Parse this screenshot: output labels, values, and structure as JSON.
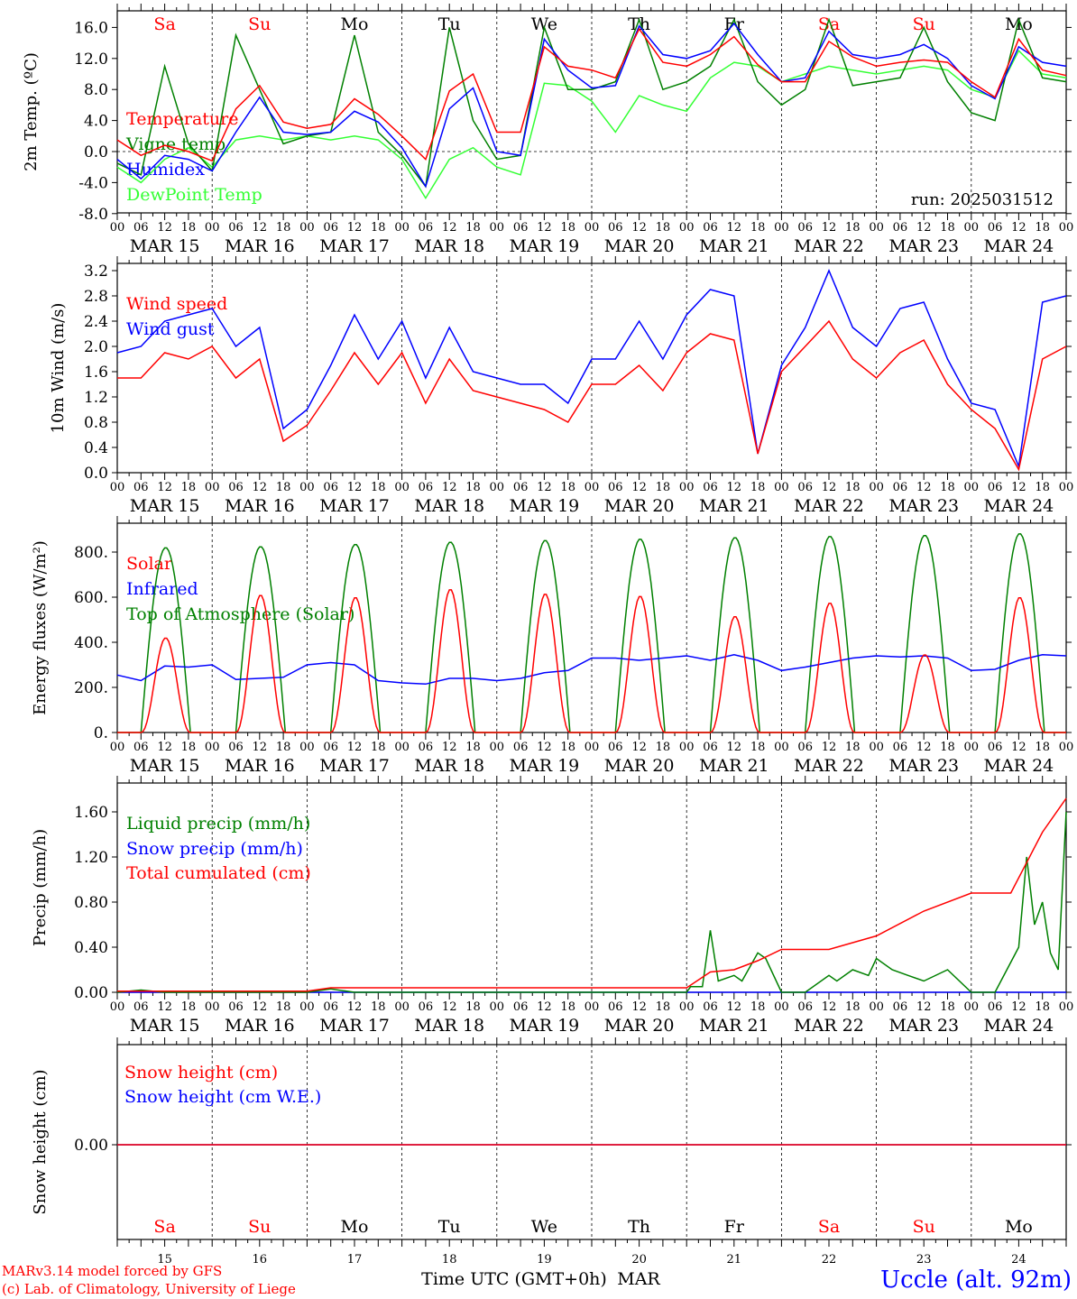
{
  "colors": {
    "temperature": "#ff0000",
    "vigne": "#008000",
    "humidex": "#0000ff",
    "dewpoint": "#33ff33",
    "wind_speed": "#ff0000",
    "wind_gust": "#0000ff",
    "solar": "#ff0000",
    "infrared": "#0000ff",
    "toa": "#008000",
    "liquid": "#008000",
    "snow": "#0000ff",
    "cumul": "#ff0000",
    "weekend": "#ff0000",
    "weekday": "#000000",
    "station": "#0000ff",
    "credit": "#ff0000"
  },
  "header": {
    "run": "run: 2025031512"
  },
  "footer": {
    "xlabel": "Time UTC (GMT+0h)",
    "month": "MAR",
    "credit_line1": "MARv3.14 model forced by GFS",
    "credit_line2": "(c) Lab. of Climatology, University of Liege",
    "station": "Uccle (alt. 92m)"
  },
  "days": [
    {
      "abbr": "Sa",
      "date": "MAR 15",
      "num": "15",
      "weekend": true
    },
    {
      "abbr": "Su",
      "date": "MAR 16",
      "num": "16",
      "weekend": true
    },
    {
      "abbr": "Mo",
      "date": "MAR 17",
      "num": "17",
      "weekend": false
    },
    {
      "abbr": "Tu",
      "date": "MAR 18",
      "num": "18",
      "weekend": false
    },
    {
      "abbr": "We",
      "date": "MAR 19",
      "num": "19",
      "weekend": false
    },
    {
      "abbr": "Th",
      "date": "MAR 20",
      "num": "20",
      "weekend": false
    },
    {
      "abbr": "Fr",
      "date": "MAR 21",
      "num": "21",
      "weekend": false
    },
    {
      "abbr": "Sa",
      "date": "MAR 22",
      "num": "22",
      "weekend": true
    },
    {
      "abbr": "Su",
      "date": "MAR 23",
      "num": "23",
      "weekend": true
    },
    {
      "abbr": "Mo",
      "date": "MAR 24",
      "num": "24",
      "weekend": false
    }
  ],
  "hour_ticks": [
    "00",
    "06",
    "12",
    "18"
  ],
  "chart_data": [
    {
      "type": "line",
      "ylabel": "2m Temp. (ºC)",
      "ylim": [
        -8,
        18
      ],
      "yticks": [
        "-8.0",
        "-4.0",
        "0.0",
        "4.0",
        "8.0",
        "12.0",
        "16.0"
      ],
      "ytick_values": [
        -8,
        -4,
        0,
        4,
        8,
        12,
        16
      ],
      "x_unit": "hours since MAR 15 00 UTC",
      "xlim": [
        0,
        240
      ],
      "series": [
        {
          "name": "Temperature",
          "color_key": "temperature",
          "x": [
            0,
            6,
            12,
            18,
            24,
            30,
            36,
            42,
            48,
            54,
            60,
            66,
            72,
            78,
            84,
            90,
            96,
            102,
            108,
            114,
            120,
            126,
            132,
            138,
            144,
            150,
            156,
            162,
            168,
            174,
            180,
            186,
            192,
            198,
            204,
            210,
            216,
            222,
            228,
            234,
            240
          ],
          "values": [
            1.5,
            -0.5,
            0.8,
            0,
            -1.2,
            5.5,
            8.5,
            3.8,
            3,
            3.5,
            6.8,
            4.8,
            2,
            -1,
            7.8,
            10,
            2.5,
            2.5,
            13.5,
            11,
            10.5,
            9.5,
            15.8,
            11.5,
            11,
            12.5,
            14.8,
            11.2,
            9,
            9,
            14.2,
            12.2,
            11,
            11.5,
            11.8,
            11.5,
            9,
            7,
            14.5,
            10.5,
            9.8
          ]
        },
        {
          "name": "Vigne temp",
          "color_key": "vigne",
          "x": [
            0,
            6,
            12,
            18,
            24,
            30,
            36,
            42,
            48,
            54,
            60,
            66,
            72,
            78,
            84,
            90,
            96,
            102,
            108,
            114,
            120,
            126,
            132,
            138,
            144,
            150,
            156,
            162,
            168,
            174,
            180,
            186,
            192,
            198,
            204,
            210,
            216,
            222,
            228,
            234,
            240
          ],
          "values": [
            -1.5,
            -3,
            11,
            1,
            -2.5,
            15,
            8,
            1,
            2,
            2.5,
            15,
            2.5,
            -0.5,
            -4.5,
            16,
            4,
            -1,
            -0.5,
            16,
            8,
            8,
            9,
            17,
            8,
            9,
            11,
            17,
            9,
            6,
            8,
            17,
            8.5,
            9,
            9.5,
            16,
            9,
            5,
            4,
            17,
            9.5,
            9
          ]
        },
        {
          "name": "Humidex",
          "color_key": "humidex",
          "x": [
            0,
            6,
            12,
            18,
            24,
            30,
            36,
            42,
            48,
            54,
            60,
            66,
            72,
            78,
            84,
            90,
            96,
            102,
            108,
            114,
            120,
            126,
            132,
            138,
            144,
            150,
            156,
            162,
            168,
            174,
            180,
            186,
            192,
            198,
            204,
            210,
            216,
            222,
            228,
            234,
            240
          ],
          "values": [
            -1,
            -3.5,
            -0.5,
            -1,
            -2.5,
            2.5,
            7,
            2.5,
            2.2,
            2.5,
            5.2,
            3.8,
            0.5,
            -4.5,
            5.5,
            8.2,
            0,
            -0.5,
            14.5,
            10.5,
            8.2,
            8.5,
            16.2,
            12.5,
            12,
            13,
            16.5,
            12.5,
            9,
            9.5,
            15.5,
            12.5,
            12,
            12.5,
            13.8,
            12,
            8.5,
            6.8,
            13.5,
            11.5,
            11
          ]
        },
        {
          "name": "DewPoint Temp",
          "color_key": "dewpoint",
          "x": [
            0,
            6,
            12,
            18,
            24,
            30,
            36,
            42,
            48,
            54,
            60,
            66,
            72,
            78,
            84,
            90,
            96,
            102,
            108,
            114,
            120,
            126,
            132,
            138,
            144,
            150,
            156,
            162,
            168,
            174,
            180,
            186,
            192,
            198,
            204,
            210,
            216,
            222,
            228,
            234,
            240
          ],
          "values": [
            -2,
            -4,
            -1,
            0.5,
            -2,
            1.5,
            2,
            1.5,
            2,
            1.5,
            2,
            1.5,
            -1,
            -6,
            -1,
            0.5,
            -2,
            -3,
            8.8,
            8.5,
            6.5,
            2.5,
            7.2,
            6,
            5.2,
            9.5,
            11.5,
            11,
            9,
            10,
            11,
            10.5,
            10,
            10.5,
            11,
            10.5,
            8,
            7,
            13,
            10,
            9.5
          ]
        }
      ]
    },
    {
      "type": "line",
      "ylabel": "10m Wind (m/s)",
      "ylim": [
        0,
        3.2
      ],
      "yticks": [
        "0.0",
        "0.4",
        "0.8",
        "1.2",
        "1.6",
        "2.0",
        "2.4",
        "2.8",
        "3.2"
      ],
      "ytick_values": [
        0,
        0.4,
        0.8,
        1.2,
        1.6,
        2.0,
        2.4,
        2.8,
        3.2
      ],
      "x_unit": "hours since MAR 15 00 UTC",
      "xlim": [
        0,
        240
      ],
      "series": [
        {
          "name": "Wind speed",
          "color_key": "wind_speed",
          "x": [
            0,
            6,
            12,
            18,
            24,
            30,
            36,
            42,
            48,
            54,
            60,
            66,
            72,
            78,
            84,
            90,
            96,
            102,
            108,
            114,
            120,
            126,
            132,
            138,
            144,
            150,
            156,
            162,
            168,
            174,
            180,
            186,
            192,
            198,
            204,
            210,
            216,
            222,
            228,
            234,
            240
          ],
          "values": [
            1.5,
            1.5,
            1.9,
            1.8,
            2,
            1.5,
            1.8,
            0.5,
            0.75,
            1.3,
            1.9,
            1.4,
            1.9,
            1.1,
            1.8,
            1.3,
            1.2,
            1.1,
            1.0,
            0.8,
            1.4,
            1.4,
            1.7,
            1.3,
            1.9,
            2.2,
            2.1,
            0.3,
            1.6,
            2,
            2.4,
            1.8,
            1.5,
            1.9,
            2.1,
            1.4,
            1.0,
            0.7,
            0.05,
            1.8,
            2.0
          ]
        },
        {
          "name": "Wind gust",
          "color_key": "wind_gust",
          "x": [
            0,
            6,
            12,
            18,
            24,
            30,
            36,
            42,
            48,
            54,
            60,
            66,
            72,
            78,
            84,
            90,
            96,
            102,
            108,
            114,
            120,
            126,
            132,
            138,
            144,
            150,
            156,
            162,
            168,
            174,
            180,
            186,
            192,
            198,
            204,
            210,
            216,
            222,
            228,
            234,
            240
          ],
          "values": [
            1.9,
            2,
            2.4,
            2.5,
            2.6,
            2.0,
            2.3,
            0.7,
            1.0,
            1.7,
            2.5,
            1.8,
            2.4,
            1.5,
            2.3,
            1.6,
            1.5,
            1.4,
            1.4,
            1.1,
            1.8,
            1.8,
            2.4,
            1.8,
            2.5,
            2.9,
            2.8,
            0.3,
            1.7,
            2.3,
            3.2,
            2.3,
            2.0,
            2.6,
            2.7,
            1.8,
            1.1,
            1.0,
            0.1,
            2.7,
            2.8
          ]
        }
      ]
    },
    {
      "type": "line",
      "ylabel": "Energy fluxes (W/m²)",
      "ylim": [
        0,
        900
      ],
      "yticks": [
        "0.",
        "200.",
        "400.",
        "600.",
        "800."
      ],
      "ytick_values": [
        0,
        200,
        400,
        600,
        800
      ],
      "x_unit": "hours since MAR 15 00 UTC",
      "xlim": [
        0,
        240
      ],
      "series": [
        {
          "name": "Solar",
          "color_key": "solar",
          "peaks": [
            420,
            610,
            600,
            635,
            615,
            605,
            515,
            575,
            345,
            600
          ]
        },
        {
          "name": "Infrared",
          "color_key": "infrared",
          "x": [
            0,
            6,
            12,
            18,
            24,
            30,
            36,
            42,
            48,
            54,
            60,
            66,
            72,
            78,
            84,
            90,
            96,
            102,
            108,
            114,
            120,
            126,
            132,
            138,
            144,
            150,
            156,
            162,
            168,
            174,
            180,
            186,
            192,
            198,
            204,
            210,
            216,
            222,
            228,
            234,
            240
          ],
          "values": [
            255,
            230,
            295,
            290,
            300,
            235,
            240,
            245,
            300,
            310,
            300,
            230,
            220,
            215,
            240,
            240,
            230,
            240,
            265,
            275,
            330,
            330,
            320,
            330,
            340,
            320,
            345,
            320,
            275,
            290,
            310,
            330,
            340,
            335,
            340,
            330,
            275,
            280,
            320,
            345,
            340
          ]
        },
        {
          "name": "Top of Atmosphere (Solar)",
          "color_key": "toa",
          "peaks": [
            820,
            825,
            835,
            845,
            852,
            858,
            865,
            870,
            875,
            882
          ]
        }
      ]
    },
    {
      "type": "line",
      "ylabel": "Precip (mm/h)",
      "ylim": [
        0,
        1.9
      ],
      "yticks": [
        "0.00",
        "0.40",
        "0.80",
        "1.20",
        "1.60"
      ],
      "ytick_values": [
        0,
        0.4,
        0.8,
        1.2,
        1.6
      ],
      "x_unit": "hours since MAR 15 00 UTC",
      "xlim": [
        0,
        240
      ],
      "series": [
        {
          "name": "Liquid precip (mm/h)",
          "color_key": "liquid",
          "x": [
            0,
            6,
            12,
            48,
            54,
            60,
            144,
            145,
            148,
            150,
            152,
            156,
            158,
            162,
            164,
            168,
            174,
            180,
            182,
            186,
            190,
            192,
            196,
            200,
            204,
            210,
            216,
            222,
            228,
            230,
            232,
            234,
            236,
            238,
            240
          ],
          "values": [
            0,
            0.02,
            0,
            0,
            0.03,
            0,
            0,
            0.05,
            0.05,
            0.55,
            0.1,
            0.15,
            0.1,
            0.35,
            0.3,
            0,
            0,
            0.15,
            0.1,
            0.2,
            0.15,
            0.3,
            0.2,
            0.15,
            0.1,
            0.2,
            0,
            0,
            0.4,
            1.2,
            0.6,
            0.8,
            0.35,
            0.2,
            1.6
          ]
        },
        {
          "name": "Snow precip (mm/h)",
          "color_key": "snow",
          "x": [
            0,
            240
          ],
          "values": [
            0,
            0
          ]
        },
        {
          "name": "Total cumulated (cm)",
          "color_key": "cumul",
          "x": [
            0,
            48,
            54,
            144,
            150,
            156,
            162,
            168,
            180,
            192,
            204,
            216,
            226,
            234,
            240
          ],
          "values": [
            0.01,
            0.01,
            0.04,
            0.04,
            0.18,
            0.2,
            0.28,
            0.38,
            0.38,
            0.5,
            0.72,
            0.88,
            0.88,
            1.42,
            1.72
          ]
        }
      ]
    },
    {
      "type": "line",
      "ylabel": "Snow height (cm)",
      "ylim": [
        -1,
        1
      ],
      "yticks": [
        "0.00"
      ],
      "ytick_values": [
        0
      ],
      "x_unit": "hours since MAR 15 00 UTC",
      "xlim": [
        0,
        240
      ],
      "series": [
        {
          "name": "Snow height (cm)",
          "color_key": "cumul",
          "x": [
            0,
            240
          ],
          "values": [
            0,
            0
          ]
        },
        {
          "name": "Snow height (cm W.E.)",
          "color_key": "snow",
          "x": [
            0,
            240
          ],
          "values": [
            0,
            0
          ]
        }
      ]
    }
  ]
}
